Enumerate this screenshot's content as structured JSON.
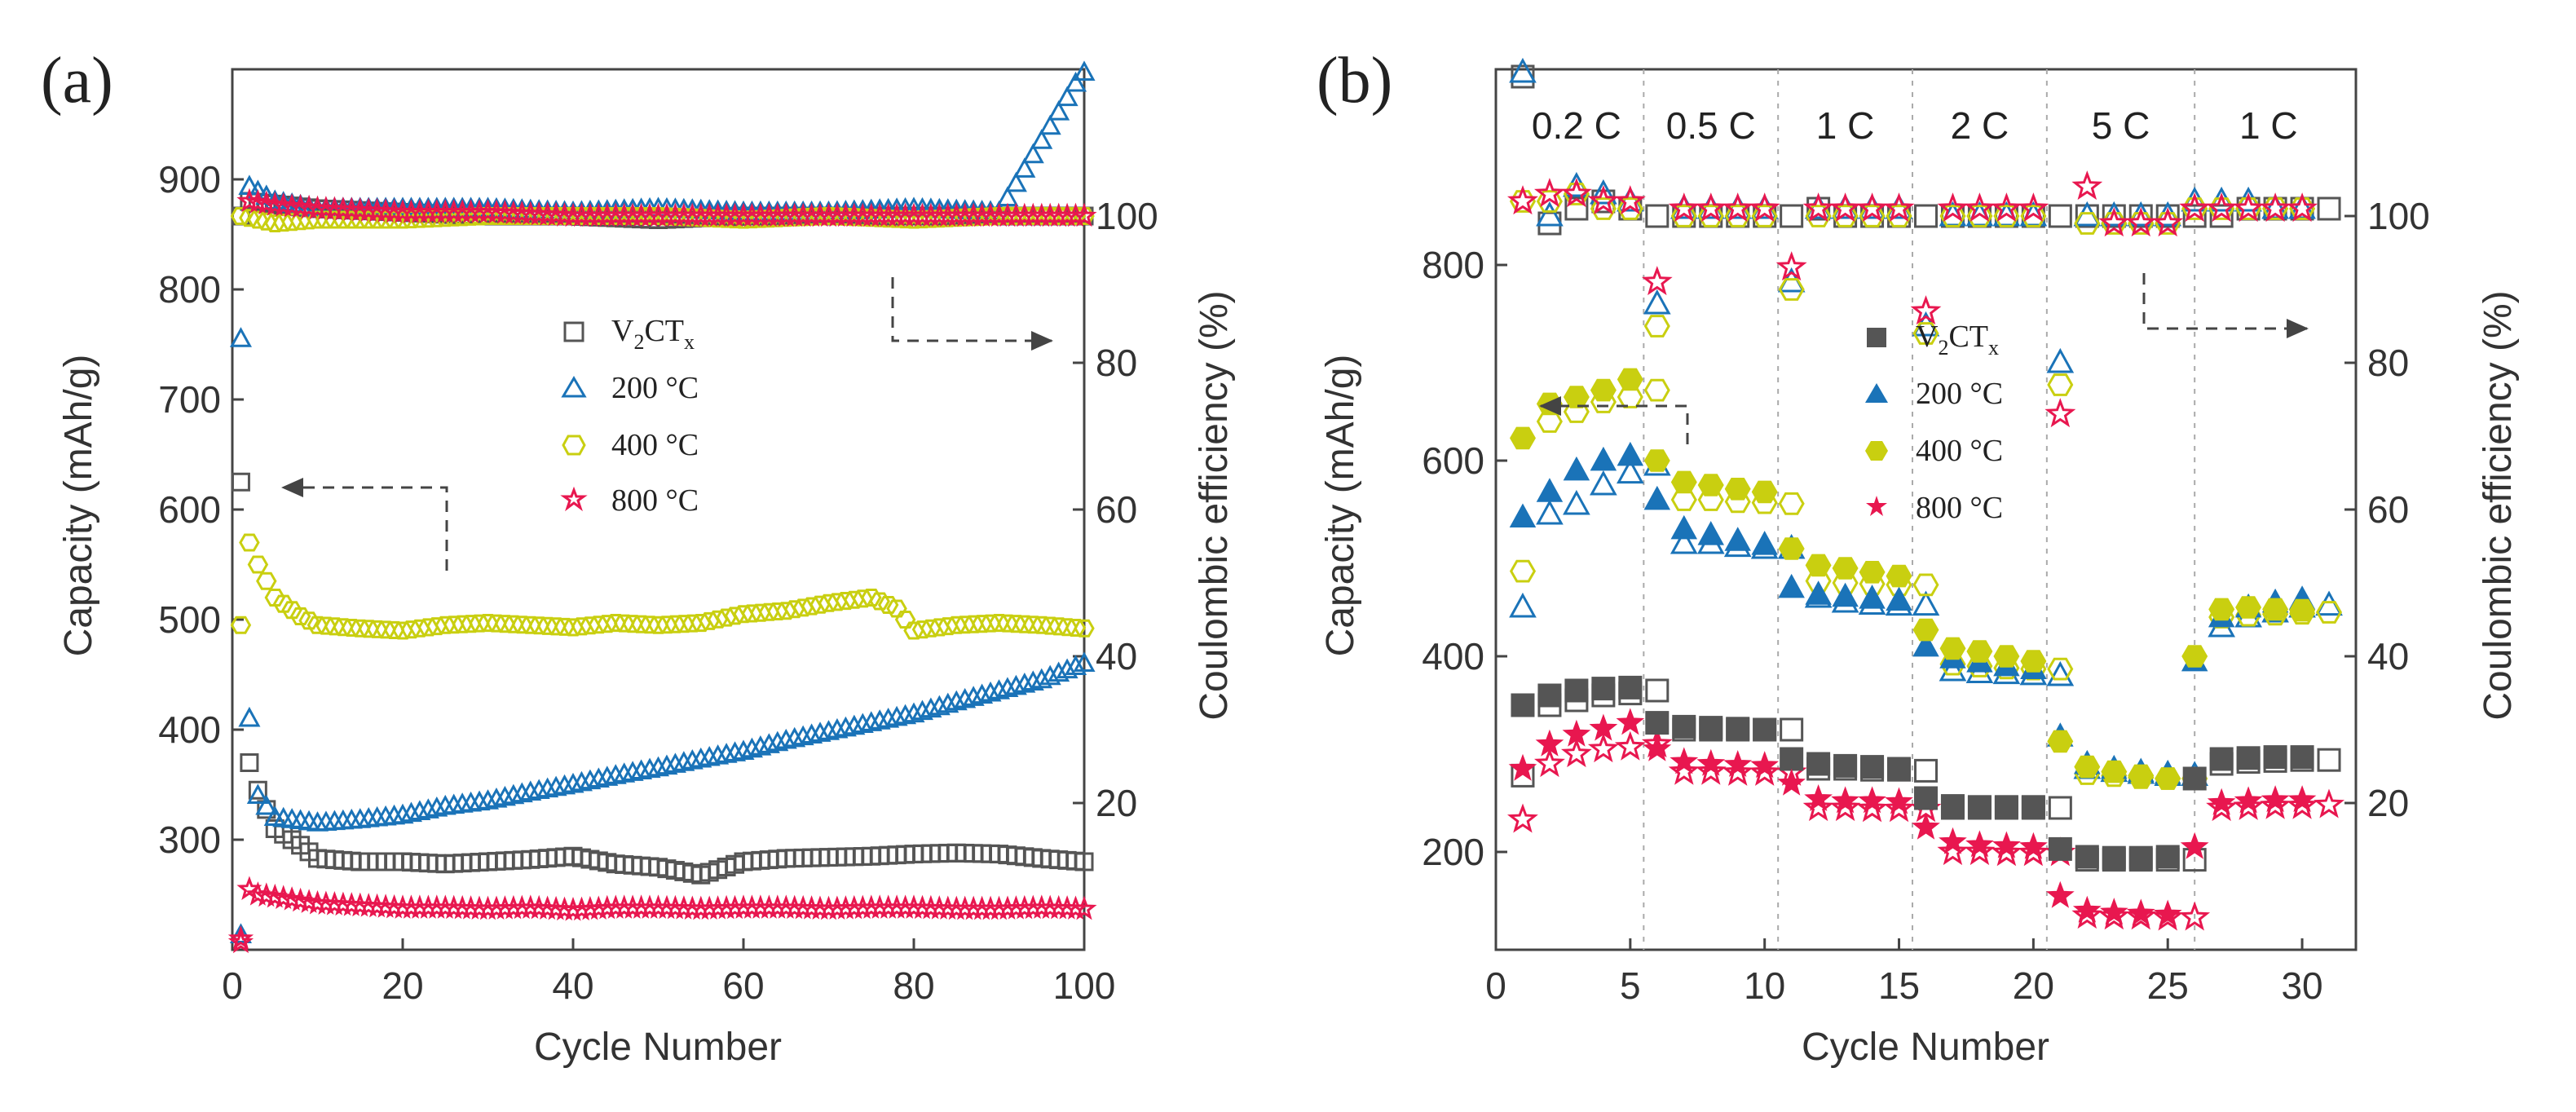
{
  "colors": {
    "v2ct": "#555555",
    "c200": "#1a73b8",
    "c400": "#c9cf10",
    "c800": "#e8174f",
    "arrow": "#444444",
    "divider": "#aaaaaa"
  },
  "legend_labels": {
    "v2ct_main": "V",
    "v2ct_sub1": "2",
    "v2ct_ct": "CT",
    "v2ct_sub2": "x",
    "c200": "200 °C",
    "c400": "400 °C",
    "c800": "800 °C"
  },
  "chart_data": [
    {
      "panel": "(a)",
      "type": "scatter",
      "xlabel": "Cycle Number",
      "ylabel": "Capacity (mAh/g)",
      "y2label": "Coulombic efficiency (%)",
      "xlim": [
        0,
        100
      ],
      "ylim": [
        200,
        1000
      ],
      "y2lim": [
        0,
        120
      ],
      "xticks": [
        0,
        20,
        40,
        60,
        80,
        100
      ],
      "yticks": [
        300,
        400,
        500,
        600,
        700,
        800,
        900
      ],
      "y2ticks": [
        20,
        40,
        60,
        80,
        100
      ],
      "legend": [
        "V2CTx",
        "200 °C",
        "400 °C",
        "800 °C"
      ],
      "capacity_points": {
        "V2CTx": [
          [
            1,
            625
          ],
          [
            2,
            370
          ],
          [
            3,
            345
          ],
          [
            5,
            310
          ],
          [
            8,
            295
          ],
          [
            10,
            283
          ],
          [
            15,
            280
          ],
          [
            20,
            280
          ],
          [
            25,
            278
          ],
          [
            30,
            280
          ],
          [
            35,
            282
          ],
          [
            40,
            285
          ],
          [
            45,
            278
          ],
          [
            50,
            275
          ],
          [
            55,
            268
          ],
          [
            60,
            280
          ],
          [
            65,
            283
          ],
          [
            70,
            284
          ],
          [
            75,
            285
          ],
          [
            80,
            287
          ],
          [
            85,
            288
          ],
          [
            90,
            287
          ],
          [
            95,
            283
          ],
          [
            100,
            280
          ]
        ],
        "200 °C": [
          [
            1,
            755
          ],
          [
            2,
            410
          ],
          [
            3,
            340
          ],
          [
            5,
            320
          ],
          [
            10,
            315
          ],
          [
            15,
            318
          ],
          [
            20,
            322
          ],
          [
            25,
            330
          ],
          [
            30,
            335
          ],
          [
            35,
            343
          ],
          [
            40,
            350
          ],
          [
            45,
            358
          ],
          [
            50,
            365
          ],
          [
            55,
            373
          ],
          [
            60,
            380
          ],
          [
            65,
            390
          ],
          [
            70,
            398
          ],
          [
            75,
            406
          ],
          [
            80,
            414
          ],
          [
            85,
            425
          ],
          [
            90,
            435
          ],
          [
            95,
            445
          ],
          [
            100,
            460
          ]
        ],
        "400 °C": [
          [
            1,
            495
          ],
          [
            2,
            570
          ],
          [
            3,
            550
          ],
          [
            5,
            520
          ],
          [
            8,
            503
          ],
          [
            10,
            495
          ],
          [
            15,
            492
          ],
          [
            20,
            490
          ],
          [
            25,
            495
          ],
          [
            30,
            497
          ],
          [
            35,
            495
          ],
          [
            40,
            493
          ],
          [
            45,
            497
          ],
          [
            50,
            495
          ],
          [
            55,
            497
          ],
          [
            60,
            505
          ],
          [
            65,
            508
          ],
          [
            70,
            515
          ],
          [
            75,
            520
          ],
          [
            78,
            510
          ],
          [
            80,
            490
          ],
          [
            85,
            495
          ],
          [
            90,
            497
          ],
          [
            95,
            495
          ],
          [
            100,
            492
          ]
        ],
        "800 °C": [
          [
            1,
            210
          ],
          [
            2,
            255
          ],
          [
            3,
            250
          ],
          [
            5,
            248
          ],
          [
            10,
            242
          ],
          [
            15,
            240
          ],
          [
            20,
            238
          ],
          [
            25,
            238
          ],
          [
            30,
            237
          ],
          [
            35,
            238
          ],
          [
            40,
            236
          ],
          [
            45,
            238
          ],
          [
            50,
            238
          ],
          [
            55,
            237
          ],
          [
            60,
            238
          ],
          [
            65,
            238
          ],
          [
            70,
            237
          ],
          [
            75,
            238
          ],
          [
            80,
            238
          ],
          [
            85,
            237
          ],
          [
            90,
            237
          ],
          [
            95,
            238
          ],
          [
            100,
            237
          ]
        ]
      },
      "coulombic_efficiency": {
        "V2CTx": [
          [
            2,
            102
          ],
          [
            10,
            101
          ],
          [
            20,
            100.5
          ],
          [
            30,
            100
          ],
          [
            40,
            100
          ],
          [
            50,
            99.5
          ],
          [
            60,
            100
          ],
          [
            70,
            100
          ],
          [
            80,
            100
          ],
          [
            90,
            100
          ],
          [
            100,
            100
          ]
        ],
        "200 °C": [
          [
            1,
            2
          ],
          [
            2,
            104
          ],
          [
            5,
            102
          ],
          [
            10,
            101
          ],
          [
            20,
            101
          ],
          [
            30,
            101
          ],
          [
            40,
            100.5
          ],
          [
            50,
            101
          ],
          [
            60,
            100.5
          ],
          [
            70,
            100.5
          ],
          [
            80,
            101
          ],
          [
            90,
            100.5
          ],
          [
            100,
            120
          ]
        ],
        "400 °C": [
          [
            1,
            100
          ],
          [
            5,
            99
          ],
          [
            10,
            99.5
          ],
          [
            20,
            99.5
          ],
          [
            30,
            100
          ],
          [
            40,
            100
          ],
          [
            50,
            100
          ],
          [
            60,
            99.5
          ],
          [
            70,
            100
          ],
          [
            80,
            99.5
          ],
          [
            90,
            100
          ],
          [
            100,
            100
          ]
        ],
        "800 °C": [
          [
            1,
            1
          ],
          [
            2,
            102
          ],
          [
            5,
            101.5
          ],
          [
            10,
            101
          ],
          [
            20,
            100.5
          ],
          [
            30,
            100.5
          ],
          [
            40,
            100
          ],
          [
            50,
            100
          ],
          [
            60,
            100
          ],
          [
            70,
            100
          ],
          [
            80,
            100
          ],
          [
            90,
            100
          ],
          [
            100,
            100
          ]
        ]
      }
    },
    {
      "panel": "(b)",
      "type": "scatter",
      "xlabel": "Cycle Number",
      "ylabel": "Capacity (mAh/g)",
      "y2label": "Coulombic efficiency (%)",
      "xlim": [
        0,
        32
      ],
      "ylim": [
        100,
        1000
      ],
      "y2lim": [
        0,
        120
      ],
      "xticks": [
        0,
        5,
        10,
        15,
        20,
        25,
        30
      ],
      "yticks": [
        200,
        400,
        600,
        800
      ],
      "y2ticks": [
        20,
        40,
        60,
        80,
        100
      ],
      "rate_labels": [
        "0.2 C",
        "0.5 C",
        "1 C",
        "2 C",
        "5 C",
        "1 C"
      ],
      "rate_boundaries": [
        5.5,
        10.5,
        15.5,
        20.5,
        26
      ],
      "legend": [
        "V2CTx",
        "200 °C",
        "400 °C",
        "800 °C"
      ],
      "discharge": {
        "V2CTx": [
          350,
          360,
          365,
          367,
          368,
          332,
          328,
          327,
          326,
          325,
          295,
          290,
          288,
          287,
          285,
          255,
          247,
          246,
          246,
          246,
          203,
          195,
          194,
          194,
          195,
          275,
          295,
          296,
          297,
          297
        ],
        "200 °C": [
          542,
          568,
          590,
          600,
          605,
          560,
          530,
          524,
          518,
          514,
          470,
          463,
          461,
          459,
          457,
          410,
          398,
          394,
          390,
          387,
          318,
          290,
          285,
          282,
          280,
          395,
          440,
          450,
          455,
          458
        ],
        "400 °C": [
          623,
          658,
          665,
          672,
          683,
          600,
          578,
          575,
          571,
          568,
          510,
          493,
          490,
          486,
          482,
          427,
          408,
          405,
          400,
          395,
          313,
          287,
          282,
          278,
          275,
          400,
          448,
          450,
          448,
          447
        ],
        "800 °C": [
          285,
          310,
          320,
          326,
          332,
          305,
          292,
          290,
          289,
          288,
          270,
          254,
          252,
          252,
          251,
          225,
          210,
          207,
          206,
          205,
          155,
          140,
          138,
          137,
          136,
          205,
          250,
          252,
          253,
          253
        ]
      },
      "charge": {
        "V2CTx": [
          278,
          350,
          355,
          360,
          362,
          365,
          325,
          325,
          325,
          325,
          325,
          285,
          285,
          284,
          284,
          283,
          245,
          245,
          245,
          245,
          245,
          192,
          192,
          192,
          192,
          192,
          290,
          292,
          293,
          294,
          294
        ],
        "200 °C": [
          450,
          545,
          555,
          575,
          587,
          595,
          515,
          515,
          512,
          510,
          510,
          460,
          455,
          453,
          452,
          452,
          385,
          383,
          382,
          381,
          380,
          285,
          282,
          280,
          278,
          278,
          430,
          440,
          445,
          450,
          452
        ],
        "400 °C": [
          487,
          640,
          650,
          660,
          665,
          672,
          560,
          560,
          558,
          557,
          556,
          477,
          475,
          474,
          473,
          473,
          392,
          390,
          388,
          387,
          387,
          280,
          278,
          276,
          275,
          275,
          440,
          442,
          443,
          444,
          445
        ],
        "800 °C": [
          233,
          290,
          300,
          305,
          307,
          310,
          282,
          282,
          281,
          281,
          281,
          245,
          245,
          244,
          244,
          244,
          200,
          200,
          199,
          199,
          199,
          135,
          134,
          134,
          133,
          133,
          245,
          246,
          247,
          247,
          248
        ]
      },
      "coulombic_efficiency": {
        "V2CTx": [
          119,
          99,
          101,
          102,
          101,
          100,
          100,
          100,
          100,
          100,
          100,
          101,
          100,
          100,
          100,
          100,
          100,
          100,
          100,
          100,
          100,
          100,
          100,
          100,
          100,
          100,
          100,
          101,
          101,
          101,
          101
        ],
        "200 °C": [
          122,
          100,
          104,
          103,
          102,
          88,
          101,
          101,
          101,
          101,
          91,
          101,
          101,
          101,
          101,
          85,
          100,
          100,
          100,
          100,
          80,
          100,
          100,
          100,
          100,
          102,
          102,
          102,
          101,
          101
        ],
        "400 °C": [
          102,
          102,
          103,
          101,
          101,
          85,
          100,
          100,
          100,
          100,
          90,
          100,
          100,
          100,
          100,
          84,
          100,
          100,
          100,
          100,
          77,
          99,
          99,
          99,
          99,
          101,
          101,
          101,
          101,
          101
        ],
        "800 °C": [
          102,
          103,
          103,
          102,
          102,
          91,
          101,
          101,
          101,
          101,
          93,
          101,
          101,
          101,
          101,
          87,
          101,
          101,
          101,
          101,
          73,
          104,
          99,
          99,
          99,
          101,
          101,
          101,
          101,
          101
        ]
      }
    }
  ]
}
